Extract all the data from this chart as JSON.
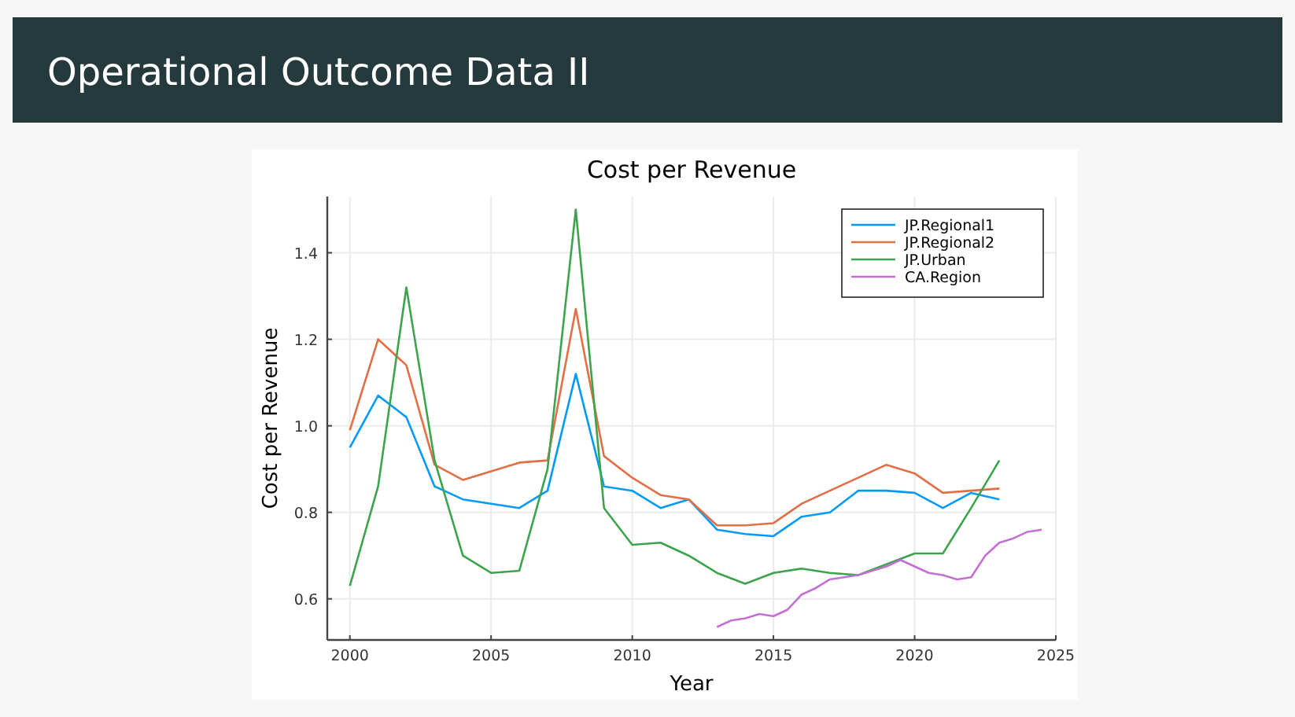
{
  "chart_data": {
    "type": "line",
    "title": "Operational Outcome Data II",
    "subtitle": "Cost per Revenue",
    "xlabel": "Year",
    "ylabel": "Cost per Revenue",
    "xlim": [
      1999.2,
      2025
    ],
    "ylim": [
      0.505,
      1.53
    ],
    "xticks": [
      2000,
      2005,
      2010,
      2015,
      2020,
      2025
    ],
    "yticks": [
      0.6,
      0.8,
      {
        "value": 1,
        "label": "1.0"
      },
      1.2,
      1.4
    ],
    "grid": true,
    "legend": "top right",
    "line_style": "solid",
    "marker": "none",
    "x": [
      2000,
      2001,
      2002,
      2003,
      2004,
      2005,
      2006,
      2007,
      2008,
      2009,
      2010,
      2011,
      2012,
      2013,
      2014,
      2015,
      2016,
      2017,
      2018,
      2019,
      2020,
      2021,
      2022,
      2023
    ],
    "series": [
      {
        "name": "JP.Regional1",
        "color": "#009af9",
        "values": [
          0.95,
          1.07,
          1.02,
          0.86,
          0.83,
          0.82,
          0.81,
          0.85,
          1.12,
          0.86,
          0.85,
          0.81,
          0.83,
          0.76,
          0.75,
          0.745,
          0.79,
          0.8,
          0.85,
          0.85,
          0.845,
          0.81,
          0.845,
          0.83
        ]
      },
      {
        "name": "JP.Regional2",
        "color": "#e26f46",
        "values": [
          0.99,
          1.2,
          1.14,
          0.91,
          0.875,
          0.895,
          0.915,
          0.92,
          1.27,
          0.93,
          0.88,
          0.84,
          0.83,
          0.77,
          0.77,
          0.775,
          0.82,
          0.85,
          0.88,
          0.91,
          0.89,
          0.845,
          0.85,
          0.855
        ]
      },
      {
        "name": "JP.Urban",
        "color": "#3da44d",
        "values": [
          0.63,
          0.86,
          1.32,
          0.92,
          0.7,
          0.66,
          0.665,
          0.9,
          1.5,
          0.81,
          0.725,
          0.73,
          0.7,
          0.66,
          0.635,
          0.66,
          0.67,
          0.66,
          0.655,
          0.68,
          0.705,
          0.705,
          0.81,
          0.92
        ]
      },
      {
        "name": "CA.Region",
        "color": "#c271d2",
        "x": [
          2013,
          2013.5,
          2014,
          2014.5,
          2015,
          2015.5,
          2016,
          2016.5,
          2017,
          2017.5,
          2018,
          2018.5,
          2019,
          2019.5,
          2020,
          2020.5,
          2021,
          2021.5,
          2022,
          2022.5,
          2023,
          2023.5,
          2024,
          2024.5
        ],
        "values": [
          0.535,
          0.55,
          0.555,
          0.565,
          0.56,
          0.575,
          0.61,
          0.625,
          0.645,
          0.65,
          0.655,
          0.665,
          0.675,
          0.69,
          0.675,
          0.66,
          0.655,
          0.645,
          0.65,
          0.7,
          0.73,
          0.74,
          0.755,
          0.76
        ]
      }
    ]
  }
}
